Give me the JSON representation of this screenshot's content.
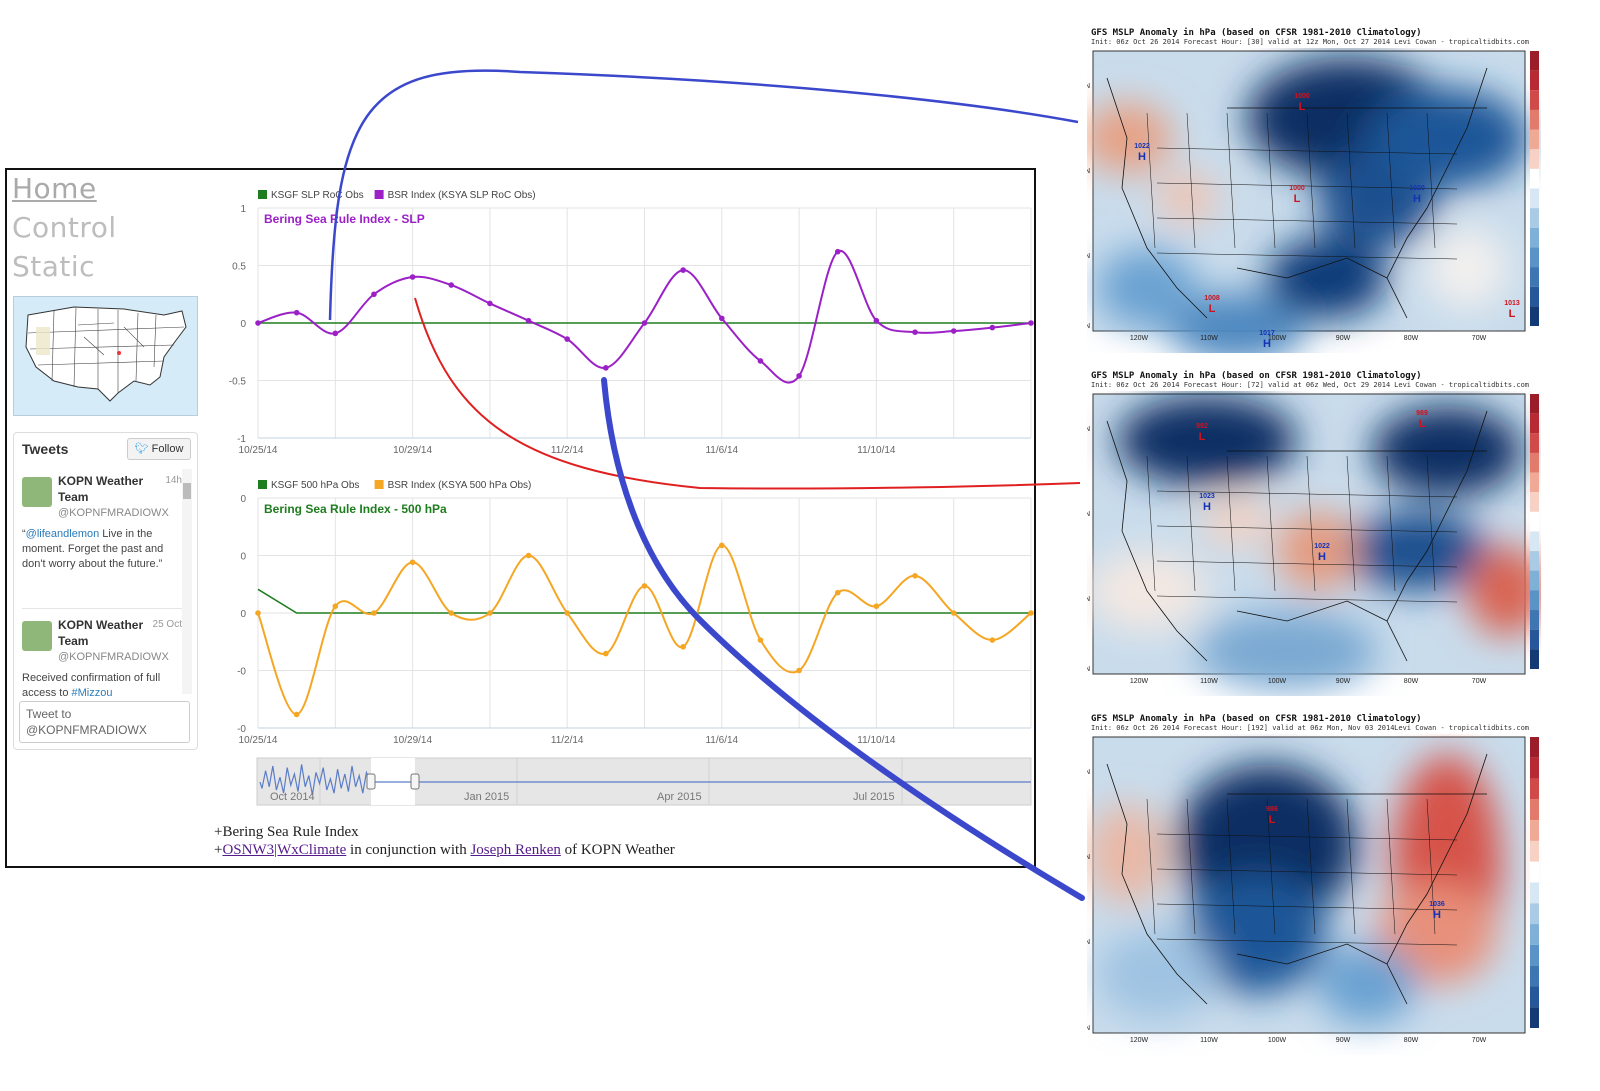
{
  "nav": {
    "home": "Home",
    "control": "Control",
    "static": "Static"
  },
  "tweets": {
    "title": "Tweets",
    "follow_label": "Follow",
    "items": [
      {
        "name": "KOPN Weather Team",
        "time": "14h",
        "handle": "@KOPNFMRADIOWX",
        "link": "@lifeandlemon",
        "text": " Live in the moment. Forget the past and don't worry about the future.",
        "quote_open": "“",
        "quote_close": "”"
      },
      {
        "name": "KOPN Weather Team",
        "time": "25 Oct",
        "handle": "@KOPNFMRADIOWX",
        "text": "Received confirmation of full access to ",
        "link": "#Mizzou"
      }
    ],
    "compose_placeholder": "Tweet to @KOPNFMRADIOWX"
  },
  "footer": {
    "line1": "+Bering Sea Rule Index",
    "plus": "+",
    "link1": "OSNW3|WxClimate",
    "mid": " in conjunction with ",
    "link2": "Joseph Renken",
    "end": " of KOPN Weather"
  },
  "colors": {
    "purple": "#9b21c7",
    "green": "#1e7d1e",
    "orange": "#f5a623",
    "red": "#e02020",
    "blue_connector": "#3b48cc",
    "navigator": "#5b7dc8"
  },
  "chart_data": [
    {
      "type": "line",
      "title": "Bering Sea Rule Index - SLP",
      "legend": [
        "KSGF SLP RoC Obs",
        "BSR Index (KSYA SLP RoC Obs)"
      ],
      "legend_position": "top-left",
      "ylim": [
        -1,
        1
      ],
      "y_ticks": [
        "1",
        "0.5",
        "0",
        "-0.5",
        "-1"
      ],
      "x_ticks": [
        "10/25/14",
        "10/29/14",
        "11/2/14",
        "11/6/14",
        "11/10/14"
      ],
      "grid": true,
      "series": [
        {
          "name": "KSGF SLP RoC Obs",
          "color": "#1e7d1e",
          "x": [
            0,
            20
          ],
          "values": [
            0,
            0
          ]
        },
        {
          "name": "BSR Index (KSYA SLP RoC Obs)",
          "color": "#9b21c7",
          "x": [
            0,
            1,
            2,
            3,
            4,
            5,
            6,
            7,
            8,
            9,
            10,
            11,
            12,
            13,
            14,
            15,
            16,
            17,
            18,
            19,
            20
          ],
          "values": [
            0,
            0.09,
            -0.09,
            0.25,
            0.4,
            0.33,
            0.17,
            0.02,
            -0.14,
            -0.39,
            0,
            0.46,
            0.04,
            -0.33,
            -0.46,
            0.62,
            0.02,
            -0.08,
            -0.07,
            -0.04,
            0
          ]
        }
      ]
    },
    {
      "type": "line",
      "title": "Bering Sea Rule Index - 500 hPa",
      "legend": [
        "KSGF 500 hPa Obs",
        "BSR Index (KSYA 500 hPa Obs)"
      ],
      "legend_position": "top-left",
      "y_ticks": [
        "0",
        "0",
        "0",
        "-0",
        "-0"
      ],
      "x_ticks": [
        "10/25/14",
        "10/29/14",
        "11/2/14",
        "11/6/14",
        "11/10/14"
      ],
      "grid": true,
      "series": [
        {
          "name": "KSGF 500 hPa Obs",
          "color": "#1e7d1e",
          "x": [
            0,
            1,
            20
          ],
          "values": [
            0.35,
            0,
            0
          ]
        },
        {
          "name": "BSR Index (KSYA 500 hPa Obs)",
          "color": "#f5a623",
          "x": [
            0,
            1,
            2,
            3,
            4,
            5,
            6,
            7,
            8,
            9,
            10,
            11,
            12,
            13,
            14,
            15,
            16,
            17,
            18,
            19,
            20
          ],
          "values": [
            0,
            -1.5,
            0.1,
            0,
            0.75,
            0,
            0,
            0.85,
            0,
            -0.6,
            0.4,
            -0.5,
            1.0,
            -0.4,
            -0.85,
            0.3,
            0.1,
            0.55,
            0,
            -0.4,
            0
          ]
        }
      ]
    }
  ],
  "navigator": {
    "labels": [
      "Oct 2014",
      "Jan 2015",
      "Apr 2015",
      "Jul 2015"
    ]
  },
  "maps": [
    {
      "title": "GFS MSLP Anomaly in hPa (based on CFSR 1981-2010 Climatology)",
      "init": "Init: 06z Oct 26 2014 Forecast Hour: [30] valid at 12z Mon, Oct 27 2014",
      "credit": "Levi Cowan - tropicaltidbits.com",
      "lat": [
        "50N",
        "40N",
        "30N",
        "20N"
      ],
      "lon": [
        "120W",
        "110W",
        "100W",
        "90W",
        "80W",
        "70W"
      ],
      "scale": [
        "9",
        "7",
        "5",
        "3",
        "2",
        "1",
        "0",
        "-1",
        "-2",
        "-3",
        "-4",
        "-5",
        "-7",
        "-9"
      ],
      "pressure": [
        {
          "t": "1000",
          "c": "L"
        },
        {
          "t": "1022",
          "c": "H"
        },
        {
          "t": "1000",
          "c": "L"
        },
        {
          "t": "1020",
          "c": "H"
        },
        {
          "t": "1008",
          "c": "L"
        },
        {
          "t": "1017",
          "c": "H"
        },
        {
          "t": "1013",
          "c": "L"
        }
      ]
    },
    {
      "title": "GFS MSLP Anomaly in hPa (based on CFSR 1981-2010 Climatology)",
      "init": "Init: 06z Oct 26 2014 Forecast Hour: [72] valid at 06z Wed, Oct 29 2014",
      "credit": "Levi Cowan - tropicaltidbits.com",
      "lat": [
        "50N",
        "40N",
        "30N",
        "20N"
      ],
      "lon": [
        "120W",
        "110W",
        "100W",
        "90W",
        "80W",
        "70W"
      ],
      "scale": [
        "9",
        "7",
        "5",
        "3",
        "2",
        "1",
        "0",
        "-1",
        "-2",
        "-3",
        "-4",
        "-5",
        "-7",
        "-9"
      ],
      "pressure": [
        {
          "t": "992",
          "c": "L"
        },
        {
          "t": "989",
          "c": "L"
        },
        {
          "t": "1023",
          "c": "H"
        },
        {
          "t": "1022",
          "c": "H"
        }
      ]
    },
    {
      "title": "GFS MSLP Anomaly in hPa (based on CFSR 1981-2010 Climatology)",
      "init": "Init: 06z Oct 26 2014 Forecast Hour: [192] valid at 06z Mon, Nov 03 2014",
      "credit": "Levi Cowan - tropicaltidbits.com",
      "lat": [
        "50N",
        "40N",
        "30N",
        "20N"
      ],
      "lon": [
        "120W",
        "110W",
        "100W",
        "90W",
        "80W",
        "70W"
      ],
      "scale": [
        "9",
        "7",
        "5",
        "3",
        "2",
        "1",
        "0",
        "-1",
        "-2",
        "-3",
        "-4",
        "-5",
        "-7",
        "-9"
      ],
      "pressure": [
        {
          "t": "986",
          "c": "L"
        },
        {
          "t": "1036",
          "c": "H"
        }
      ]
    }
  ]
}
